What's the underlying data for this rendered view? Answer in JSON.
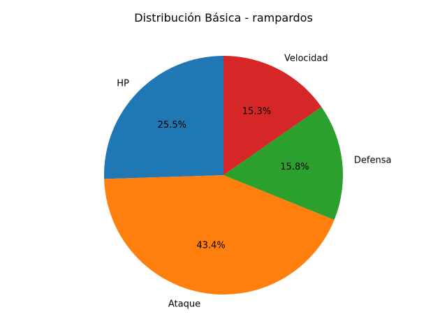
{
  "chart_data": {
    "type": "pie",
    "title": "Distribución Básica - rampardos",
    "start_angle_deg": 90,
    "direction": "counterclockwise",
    "slices": [
      {
        "label": "HP",
        "percent_label": "25.5%",
        "value": 25.5,
        "color": "#1f77b4"
      },
      {
        "label": "Ataque",
        "percent_label": "43.4%",
        "value": 43.4,
        "color": "#ff7f0e"
      },
      {
        "label": "Defensa",
        "percent_label": "15.8%",
        "value": 15.8,
        "color": "#2ca02c"
      },
      {
        "label": "Velocidad",
        "percent_label": "15.3%",
        "value": 15.3,
        "color": "#d62728"
      }
    ]
  }
}
